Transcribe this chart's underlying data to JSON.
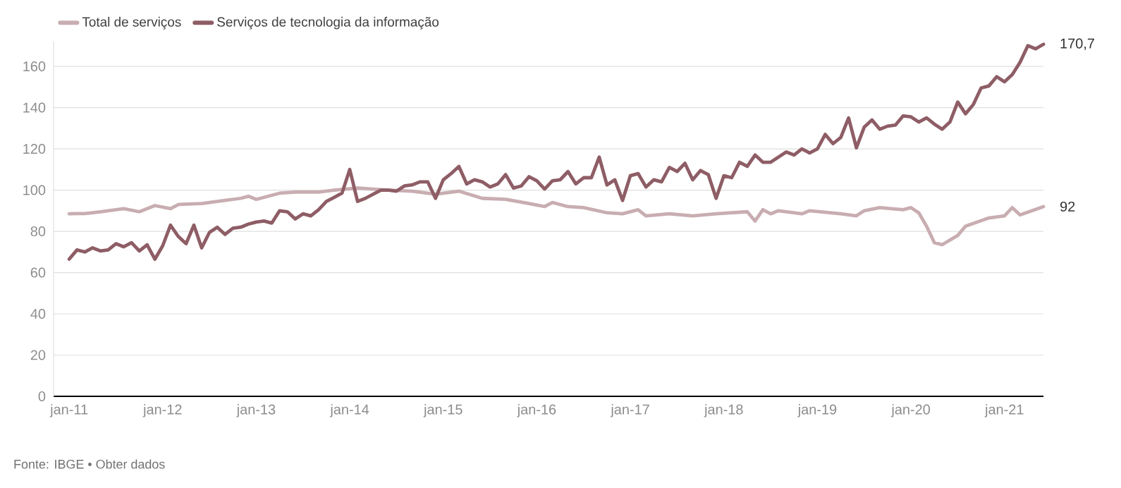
{
  "chart_data": {
    "type": "line",
    "legend": "top left",
    "grid": "y",
    "xlim": [
      "2010-11",
      "2021-06"
    ],
    "xticks": [
      {
        "value": "2011-01",
        "label": "jan-11"
      },
      {
        "value": "2012-01",
        "label": "jan-12"
      },
      {
        "value": "2013-01",
        "label": "jan-13"
      },
      {
        "value": "2014-01",
        "label": "jan-14"
      },
      {
        "value": "2015-01",
        "label": "jan-15"
      },
      {
        "value": "2016-01",
        "label": "jan-16"
      },
      {
        "value": "2017-01",
        "label": "jan-17"
      },
      {
        "value": "2018-01",
        "label": "jan-18"
      },
      {
        "value": "2019-01",
        "label": "jan-19"
      },
      {
        "value": "2020-01",
        "label": "jan-20"
      },
      {
        "value": "2021-01",
        "label": "jan-21"
      }
    ],
    "ylim": [
      0,
      172
    ],
    "yticks": [
      0,
      20,
      40,
      60,
      80,
      100,
      120,
      140,
      160
    ],
    "series": [
      {
        "name": "Total de serviços",
        "color": "#c8adb1",
        "x": [
          "2011-01",
          "2011-02",
          "2011-03",
          "2011-05",
          "2011-08",
          "2011-10",
          "2011-12",
          "2012-02",
          "2012-03",
          "2012-06",
          "2012-09",
          "2012-11",
          "2012-12",
          "2013-01",
          "2013-04",
          "2013-06",
          "2013-09",
          "2013-11",
          "2014-02",
          "2014-04",
          "2014-06",
          "2014-09",
          "2014-12",
          "2015-01",
          "2015-03",
          "2015-06",
          "2015-09",
          "2015-12",
          "2016-02",
          "2016-03",
          "2016-05",
          "2016-07",
          "2016-10",
          "2016-12",
          "2017-02",
          "2017-03",
          "2017-06",
          "2017-09",
          "2017-12",
          "2018-04",
          "2018-05",
          "2018-06",
          "2018-07",
          "2018-08",
          "2018-11",
          "2018-12",
          "2019-04",
          "2019-06",
          "2019-07",
          "2019-09",
          "2019-12",
          "2020-01",
          "2020-02",
          "2020-03",
          "2020-04",
          "2020-05",
          "2020-07",
          "2020-08",
          "2020-11",
          "2021-01",
          "2021-02",
          "2021-03",
          "2021-06"
        ],
        "values": [
          88.5,
          88.6,
          88.6,
          89.5,
          91,
          89.5,
          92.5,
          91,
          93,
          93.5,
          95,
          96,
          97,
          95.5,
          98.5,
          99,
          99,
          100,
          101,
          100.5,
          100,
          99.5,
          98,
          98.5,
          99.5,
          96,
          95.5,
          93.5,
          92,
          94,
          92,
          91.5,
          89,
          88.5,
          90.5,
          87.5,
          88.5,
          87.5,
          88.5,
          89.5,
          85,
          90.5,
          88.5,
          90,
          88.5,
          90,
          88.5,
          87.5,
          90,
          91.5,
          90.5,
          91.5,
          89,
          82.5,
          74.5,
          73.5,
          78,
          82.5,
          86.5,
          87.5,
          91.5,
          88,
          92
        ]
      },
      {
        "name": "Serviços de tecnologia da informação",
        "color": "#8e5d65",
        "x": [
          "2011-01",
          "2011-02",
          "2011-03",
          "2011-04",
          "2011-05",
          "2011-06",
          "2011-07",
          "2011-08",
          "2011-09",
          "2011-10",
          "2011-11",
          "2011-12",
          "2012-01",
          "2012-02",
          "2012-03",
          "2012-04",
          "2012-05",
          "2012-06",
          "2012-07",
          "2012-08",
          "2012-09",
          "2012-10",
          "2012-11",
          "2012-12",
          "2013-01",
          "2013-02",
          "2013-03",
          "2013-04",
          "2013-05",
          "2013-06",
          "2013-07",
          "2013-08",
          "2013-09",
          "2013-10",
          "2013-11",
          "2013-12",
          "2014-01",
          "2014-02",
          "2014-03",
          "2014-04",
          "2014-05",
          "2014-06",
          "2014-07",
          "2014-08",
          "2014-09",
          "2014-10",
          "2014-11",
          "2014-12",
          "2015-01",
          "2015-02",
          "2015-03",
          "2015-04",
          "2015-05",
          "2015-06",
          "2015-07",
          "2015-08",
          "2015-09",
          "2015-10",
          "2015-11",
          "2015-12",
          "2016-01",
          "2016-02",
          "2016-03",
          "2016-04",
          "2016-05",
          "2016-06",
          "2016-07",
          "2016-08",
          "2016-09",
          "2016-10",
          "2016-11",
          "2016-12",
          "2017-01",
          "2017-02",
          "2017-03",
          "2017-04",
          "2017-05",
          "2017-06",
          "2017-07",
          "2017-08",
          "2017-09",
          "2017-10",
          "2017-11",
          "2017-12",
          "2018-01",
          "2018-02",
          "2018-03",
          "2018-04",
          "2018-05",
          "2018-06",
          "2018-07",
          "2018-08",
          "2018-09",
          "2018-10",
          "2018-11",
          "2018-12",
          "2019-01",
          "2019-02",
          "2019-03",
          "2019-04",
          "2019-05",
          "2019-06",
          "2019-07",
          "2019-08",
          "2019-09",
          "2019-10",
          "2019-11",
          "2019-12",
          "2020-01",
          "2020-02",
          "2020-03",
          "2020-04",
          "2020-05",
          "2020-06",
          "2020-07",
          "2020-08",
          "2020-09",
          "2020-10",
          "2020-11",
          "2020-12",
          "2021-01",
          "2021-02",
          "2021-03",
          "2021-04",
          "2021-05",
          "2021-06"
        ],
        "values": [
          66.5,
          71,
          70,
          72,
          70.5,
          71,
          74,
          72.5,
          74.5,
          70.5,
          73.5,
          66.5,
          73,
          83,
          77.5,
          74,
          83,
          72,
          79.5,
          82,
          78.5,
          81.5,
          82,
          83.5,
          84.5,
          85,
          84,
          90,
          89.5,
          86,
          88.5,
          87.5,
          90.5,
          94.5,
          96.5,
          98.5,
          110,
          94.5,
          96,
          98,
          100,
          100,
          99.5,
          102,
          102.5,
          104,
          104,
          96,
          105,
          108,
          111.5,
          103,
          105,
          104,
          101.5,
          103,
          107.5,
          101,
          102,
          106.5,
          104.5,
          100.5,
          104.5,
          105,
          109,
          103,
          106,
          106,
          116,
          102.5,
          105,
          95,
          107,
          108,
          101.5,
          105,
          104,
          111,
          109,
          113,
          105,
          109.5,
          107.5,
          96,
          107,
          106,
          113.5,
          111.5,
          117,
          113.5,
          113.5,
          116,
          118.5,
          117,
          120,
          118,
          120,
          127,
          122.5,
          125.5,
          135,
          120.5,
          130.5,
          134,
          129.5,
          131,
          131.5,
          136,
          135.5,
          133,
          135,
          132,
          129.5,
          133,
          142.7,
          137,
          141.5,
          149.5,
          150.5,
          155,
          152.5,
          156,
          162,
          170,
          168.5,
          170.7
        ]
      }
    ],
    "annotations": [
      {
        "text": "170,7",
        "x": "2021-06",
        "y": 170.7
      },
      {
        "text": "92",
        "x": "2021-06",
        "y": 92
      },
      "Fonte: IBGE • Obter dados"
    ]
  }
}
